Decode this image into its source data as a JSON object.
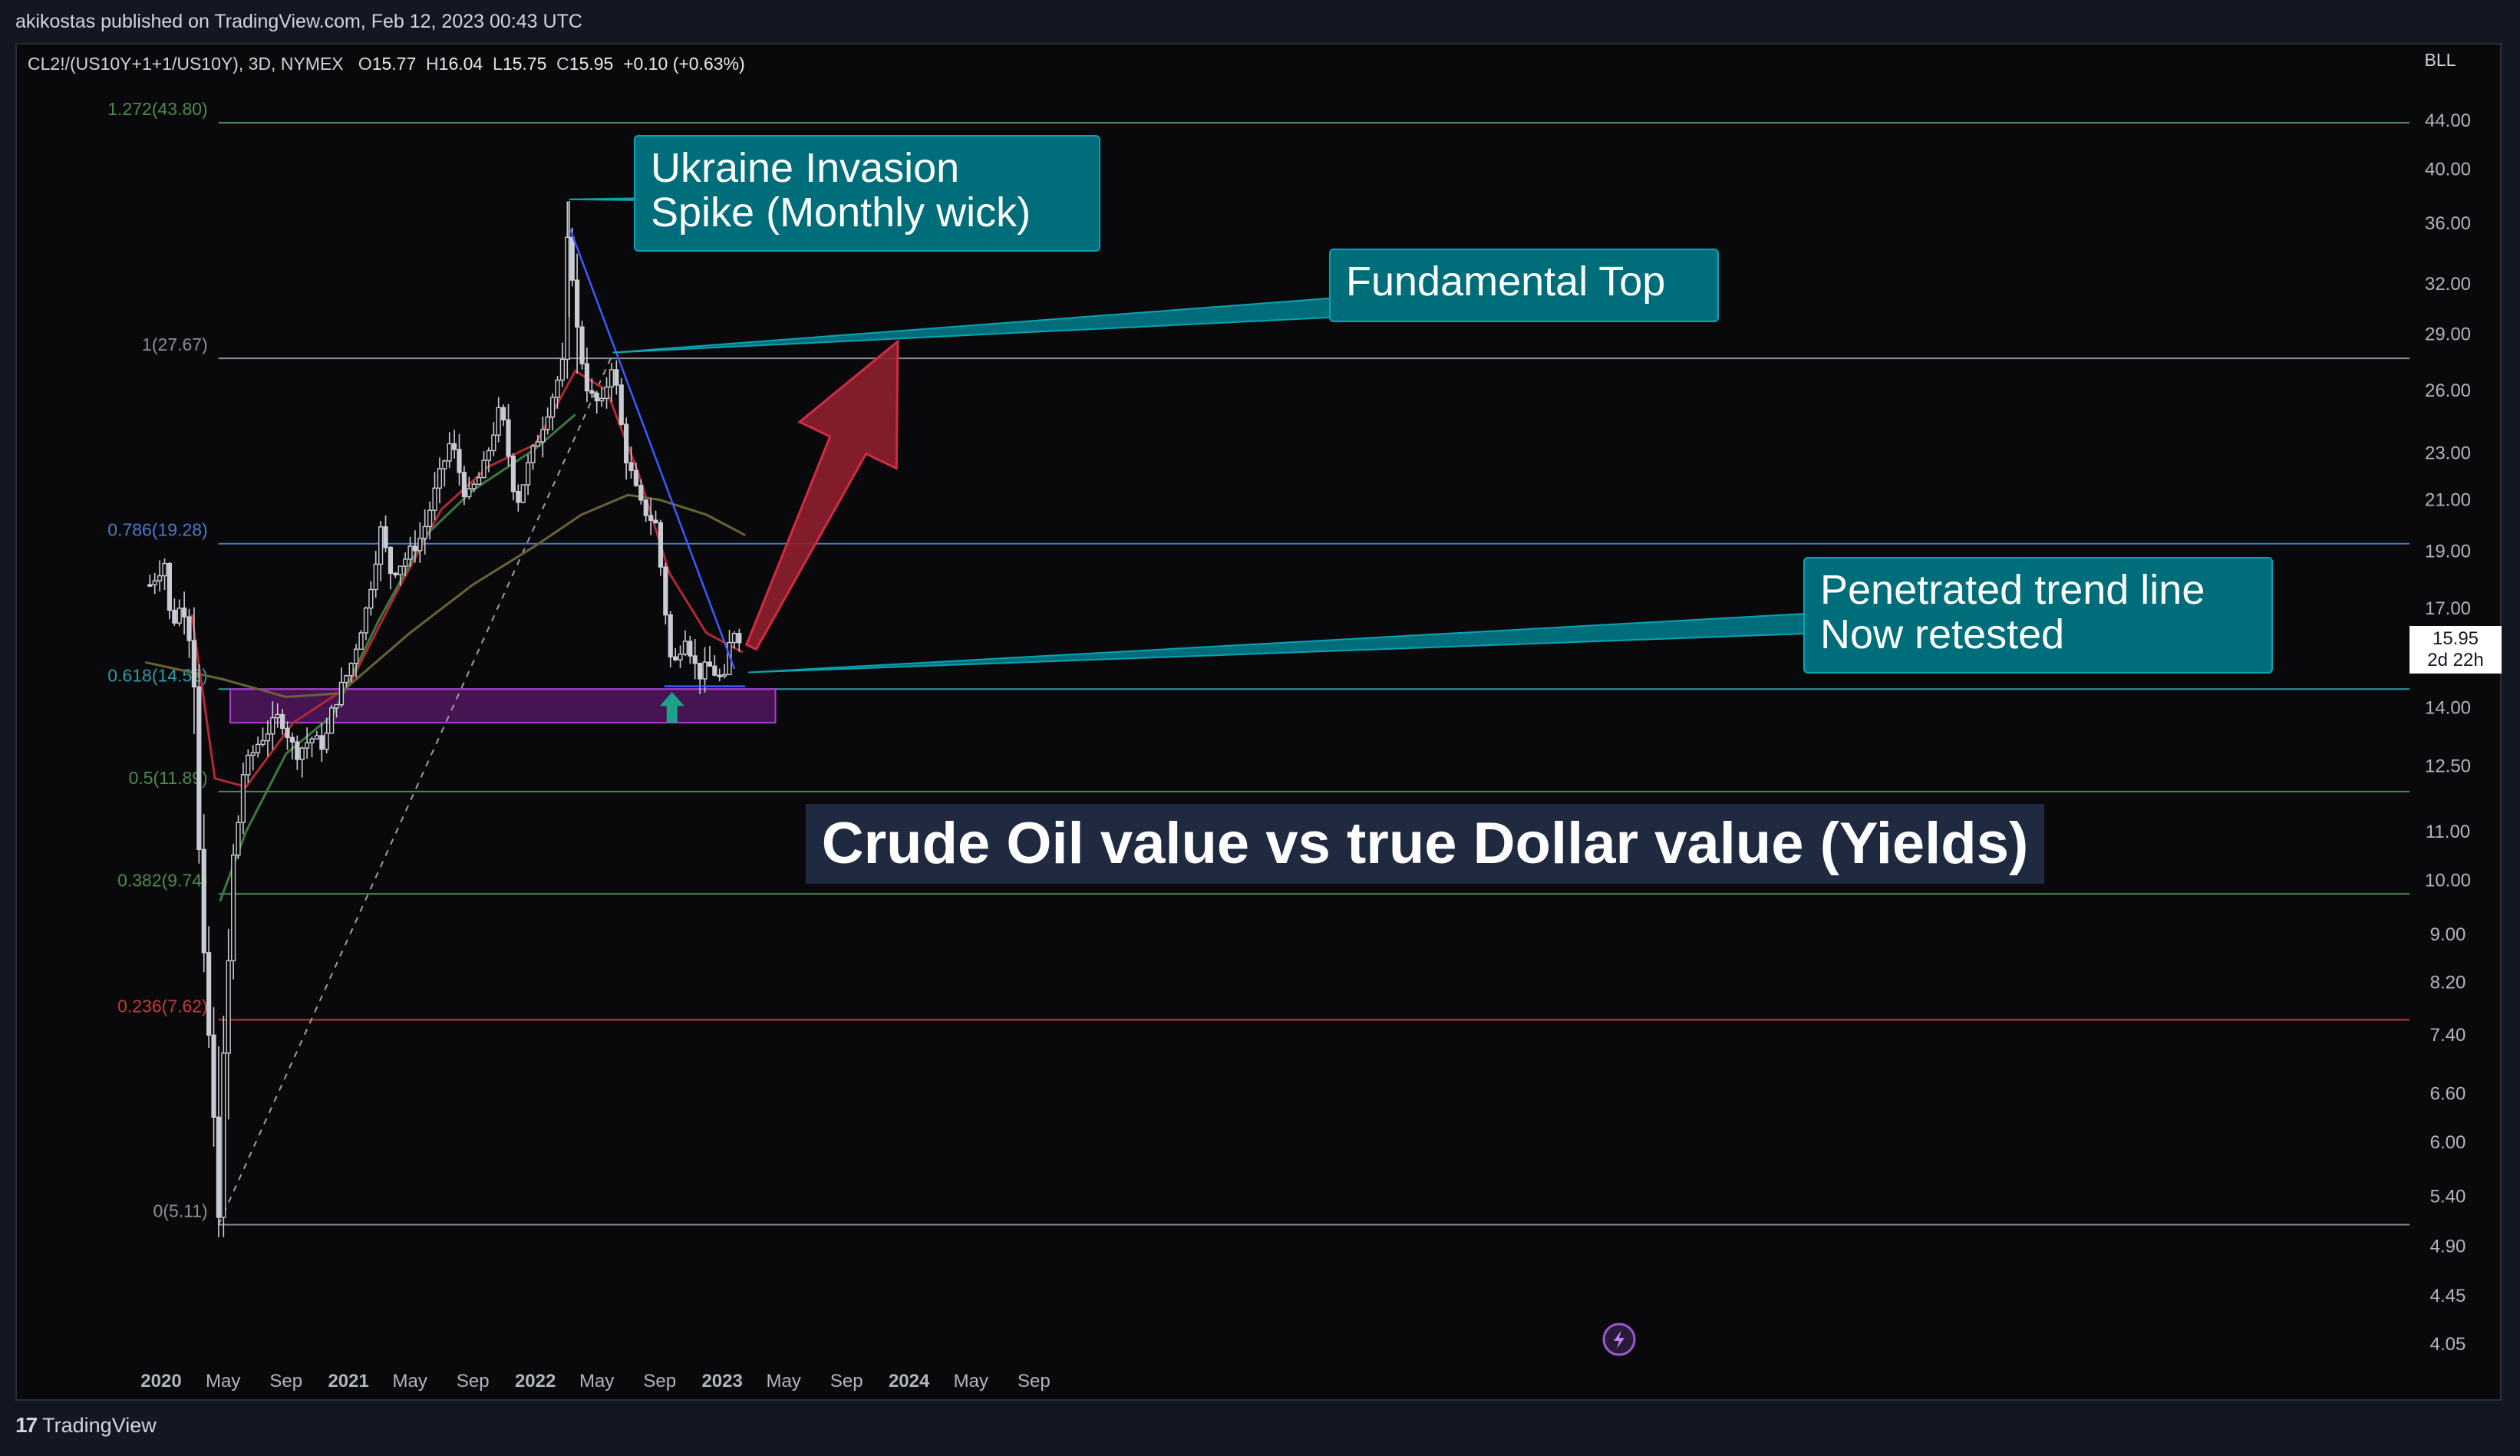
{
  "publisher": "akikostas published on TradingView.com, Feb 12, 2023 00:43 UTC",
  "symbol": {
    "name": "CL2!/(US10Y+1+1/US10Y), 3D, NYMEX",
    "o_label": "O",
    "o": "15.77",
    "h_label": "H",
    "h": "16.04",
    "l_label": "L",
    "l": "15.75",
    "c_label": "C",
    "c": "15.95",
    "change": "+0.10 (+0.63%)"
  },
  "scale_label": "BLL",
  "price_badge": {
    "value": "15.95",
    "countdown": "2d 22h"
  },
  "colors": {
    "background": "#09090b",
    "panel": "#131722",
    "callout_fill": "#006e7a",
    "callout_border": "#0aa3b3",
    "zone": "#7a1d8f",
    "trend_line": "#3d5afe",
    "ma_red": "#b22833",
    "ma_green": "#3b7a3f",
    "ma_olive": "#6b6237",
    "arrow": "#8f1f2f",
    "marker_up": "#1aa38a"
  },
  "chart_data": {
    "type": "candlestick",
    "timeframe": "3D",
    "y_scale": "log",
    "y_ticks": [
      "44.00",
      "40.00",
      "36.00",
      "32.00",
      "29.00",
      "26.00",
      "23.00",
      "21.00",
      "19.00",
      "17.00",
      "14.00",
      "12.50",
      "11.00",
      "10.00",
      "9.00",
      "8.20",
      "7.40",
      "6.60",
      "6.00",
      "5.40",
      "4.90",
      "4.45",
      "4.05"
    ],
    "x_ticks": [
      {
        "label": "2020",
        "date": "2020-01-01",
        "bold": true
      },
      {
        "label": "May",
        "date": "2020-05-01",
        "bold": false
      },
      {
        "label": "Sep",
        "date": "2020-09-01",
        "bold": false
      },
      {
        "label": "2021",
        "date": "2021-01-01",
        "bold": true
      },
      {
        "label": "May",
        "date": "2021-05-01",
        "bold": false
      },
      {
        "label": "Sep",
        "date": "2021-09-01",
        "bold": false
      },
      {
        "label": "2022",
        "date": "2022-01-01",
        "bold": true
      },
      {
        "label": "May",
        "date": "2022-05-01",
        "bold": false
      },
      {
        "label": "Sep",
        "date": "2022-09-01",
        "bold": false
      },
      {
        "label": "2023",
        "date": "2023-01-01",
        "bold": true
      },
      {
        "label": "May",
        "date": "2023-05-01",
        "bold": false
      },
      {
        "label": "Sep",
        "date": "2023-09-01",
        "bold": false
      },
      {
        "label": "2024",
        "date": "2024-01-01",
        "bold": true
      },
      {
        "label": "May",
        "date": "2024-05-01",
        "bold": false
      },
      {
        "label": "Sep",
        "date": "2024-09-01",
        "bold": false
      }
    ],
    "fib_levels": [
      {
        "label": "1.272(43.80)",
        "value": 43.8,
        "color": "#4f8a4f"
      },
      {
        "label": "1(27.67)",
        "value": 27.67,
        "color": "#8c8f96"
      },
      {
        "label": "0.786(19.28)",
        "value": 19.28,
        "color": "#4b79c7"
      },
      {
        "label": "0.618(14.52)",
        "value": 14.52,
        "color": "#2e9aa3"
      },
      {
        "label": "0.5(11.89)",
        "value": 11.89,
        "color": "#4f8a4f"
      },
      {
        "label": "0.382(9.74)",
        "value": 9.74,
        "color": "#4f8a4f"
      },
      {
        "label": "0.236(7.62)",
        "value": 7.62,
        "color": "#c23a3a"
      },
      {
        "label": "0(5.11)",
        "value": 5.11,
        "color": "#8c8f96"
      }
    ],
    "support_zone": {
      "from": "2020-05-15",
      "to": "2023-04-15",
      "low": 13.6,
      "high": 14.52
    },
    "price_path": [
      [
        "2019-12-10",
        17.8
      ],
      [
        "2020-01-08",
        18.6
      ],
      [
        "2020-01-20",
        16.4
      ],
      [
        "2020-02-12",
        17.2
      ],
      [
        "2020-03-05",
        15.4
      ],
      [
        "2020-03-12",
        11.6
      ],
      [
        "2020-03-20",
        8.6
      ],
      [
        "2020-04-05",
        7.2
      ],
      [
        "2020-04-20",
        5.2
      ],
      [
        "2020-05-05",
        7.3
      ],
      [
        "2020-05-20",
        10.2
      ],
      [
        "2020-06-10",
        12.4
      ],
      [
        "2020-07-10",
        13.1
      ],
      [
        "2020-08-20",
        13.8
      ],
      [
        "2020-09-20",
        12.8
      ],
      [
        "2020-10-20",
        13.2
      ],
      [
        "2020-11-15",
        13.0
      ],
      [
        "2020-12-01",
        14.0
      ],
      [
        "2021-01-05",
        15.2
      ],
      [
        "2021-02-05",
        17.0
      ],
      [
        "2021-03-05",
        19.8
      ],
      [
        "2021-03-25",
        18.2
      ],
      [
        "2021-04-25",
        18.8
      ],
      [
        "2021-05-25",
        19.6
      ],
      [
        "2021-06-25",
        21.8
      ],
      [
        "2021-07-20",
        23.6
      ],
      [
        "2021-08-20",
        21.0
      ],
      [
        "2021-09-20",
        22.2
      ],
      [
        "2021-10-25",
        25.2
      ],
      [
        "2021-11-25",
        20.8
      ],
      [
        "2021-12-20",
        22.6
      ],
      [
        "2022-01-25",
        25.0
      ],
      [
        "2022-02-25",
        27.5
      ],
      [
        "2022-03-08",
        37.5
      ],
      [
        "2022-03-20",
        29.5
      ],
      [
        "2022-04-15",
        25.8
      ],
      [
        "2022-05-10",
        25.2
      ],
      [
        "2022-06-01",
        27.6
      ],
      [
        "2022-06-25",
        23.0
      ],
      [
        "2022-07-25",
        20.8
      ],
      [
        "2022-08-25",
        20.0
      ],
      [
        "2022-09-25",
        15.0
      ],
      [
        "2022-10-20",
        16.2
      ],
      [
        "2022-11-15",
        14.9
      ],
      [
        "2022-12-05",
        15.2
      ],
      [
        "2023-01-05",
        14.7
      ],
      [
        "2023-01-20",
        16.4
      ],
      [
        "2023-02-10",
        15.95
      ]
    ],
    "moving_averages": [
      {
        "name": "red",
        "points": [
          [
            "2020-03-01",
            16.8
          ],
          [
            "2020-04-15",
            12.2
          ],
          [
            "2020-06-15",
            12.0
          ],
          [
            "2020-09-15",
            13.6
          ],
          [
            "2021-01-01",
            14.6
          ],
          [
            "2021-04-01",
            17.4
          ],
          [
            "2021-07-01",
            20.6
          ],
          [
            "2021-10-01",
            22.4
          ],
          [
            "2022-01-01",
            23.4
          ],
          [
            "2022-03-20",
            27.0
          ],
          [
            "2022-05-20",
            26.0
          ],
          [
            "2022-07-20",
            22.2
          ],
          [
            "2022-09-20",
            18.2
          ],
          [
            "2022-12-01",
            16.2
          ],
          [
            "2023-02-10",
            15.6
          ]
        ]
      },
      {
        "name": "green",
        "points": [
          [
            "2020-04-25",
            9.6
          ],
          [
            "2020-06-15",
            11.0
          ],
          [
            "2020-09-01",
            12.8
          ],
          [
            "2020-12-01",
            13.8
          ],
          [
            "2021-03-01",
            16.6
          ],
          [
            "2021-06-01",
            19.6
          ],
          [
            "2021-09-01",
            21.4
          ],
          [
            "2022-01-01",
            23.2
          ],
          [
            "2022-03-20",
            24.8
          ]
        ]
      },
      {
        "name": "olive",
        "points": [
          [
            "2019-12-01",
            15.3
          ],
          [
            "2020-05-01",
            14.8
          ],
          [
            "2020-09-01",
            14.3
          ],
          [
            "2020-12-15",
            14.4
          ],
          [
            "2021-05-01",
            16.2
          ],
          [
            "2021-09-01",
            17.8
          ],
          [
            "2022-01-01",
            19.2
          ],
          [
            "2022-04-01",
            20.4
          ],
          [
            "2022-07-01",
            21.2
          ],
          [
            "2022-09-01",
            21.0
          ],
          [
            "2022-12-01",
            20.4
          ],
          [
            "2023-02-15",
            19.6
          ]
        ]
      }
    ],
    "trend_line": {
      "from": [
        "2022-03-10",
        35.6
      ],
      "to": [
        "2023-01-25",
        15.1
      ]
    },
    "retest_line": {
      "from": [
        "2022-09-10",
        14.6
      ],
      "to": [
        "2023-02-15",
        14.6
      ]
    },
    "dashed_line": {
      "from": [
        "2020-04-22",
        5.11
      ],
      "to": [
        "2022-06-01",
        27.9
      ]
    },
    "annotations": [
      {
        "id": "ukraine",
        "text_lines": [
          "Ukraine Invasion",
          "Spike (Monthly wick)"
        ],
        "anchor": [
          "2022-03-08",
          37.5
        ]
      },
      {
        "id": "fundamental",
        "text_lines": [
          "Fundamental Top"
        ],
        "anchor": [
          "2022-06-01",
          27.9
        ]
      },
      {
        "id": "penetrated",
        "text_lines": [
          "Penetrated trend line",
          "Now retested"
        ],
        "anchor": [
          "2023-02-15",
          15.7
        ]
      }
    ],
    "title": "Crude Oil value vs true Dollar value (Yields)"
  },
  "footer": {
    "logo": "17",
    "brand": "TradingView"
  }
}
